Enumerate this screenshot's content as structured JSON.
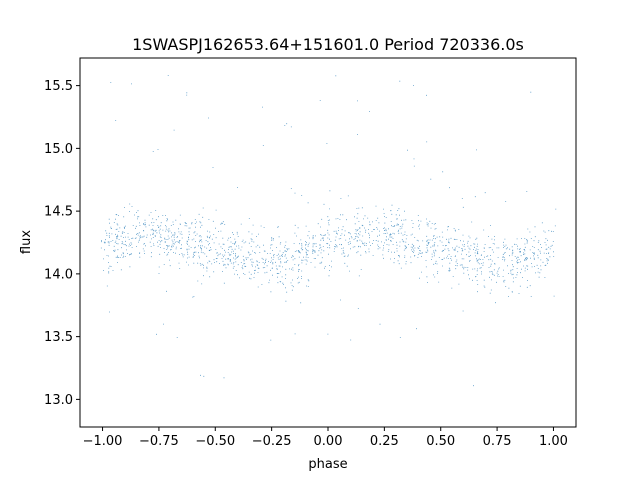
{
  "chart_data": {
    "type": "scatter",
    "title": "1SWASPJ162653.64+151601.0 Period 720336.0s",
    "xlabel": "phase",
    "ylabel": "flux",
    "xlim": [
      -1.1,
      1.1
    ],
    "ylim": [
      12.78,
      15.72
    ],
    "xticks": [
      -1.0,
      -0.75,
      -0.5,
      -0.25,
      0.0,
      0.25,
      0.5,
      0.75,
      1.0
    ],
    "xtick_labels": [
      "−1.00",
      "−0.75",
      "−0.50",
      "−0.25",
      "0.00",
      "0.25",
      "0.50",
      "0.75",
      "1.00"
    ],
    "yticks": [
      13.0,
      13.5,
      14.0,
      14.5,
      15.0,
      15.5
    ],
    "ytick_labels": [
      "13.0",
      "13.5",
      "14.0",
      "14.5",
      "15.0",
      "15.5"
    ],
    "grid": false,
    "legend": "none",
    "marker_color": "#1f77b4",
    "series": [
      {
        "x_range": [
          -1.0,
          1.0
        ],
        "approx_point_count": 24000,
        "typical_flux_range": [
          13.9,
          14.6
        ],
        "flux_extent": [
          12.9,
          15.6
        ],
        "profile_phase": [
          -1.0,
          -0.9,
          -0.8,
          -0.7,
          -0.6,
          -0.5,
          -0.4,
          -0.3,
          -0.2,
          -0.1,
          0.0,
          0.1,
          0.2,
          0.3,
          0.4,
          0.5,
          0.6,
          0.7,
          0.8,
          0.9,
          1.0
        ],
        "profile_mean_flux": [
          14.25,
          14.3,
          14.32,
          14.3,
          14.25,
          14.2,
          14.17,
          14.12,
          14.08,
          14.15,
          14.25,
          14.3,
          14.32,
          14.3,
          14.25,
          14.2,
          14.17,
          14.12,
          14.08,
          14.15,
          14.25
        ]
      }
    ]
  }
}
